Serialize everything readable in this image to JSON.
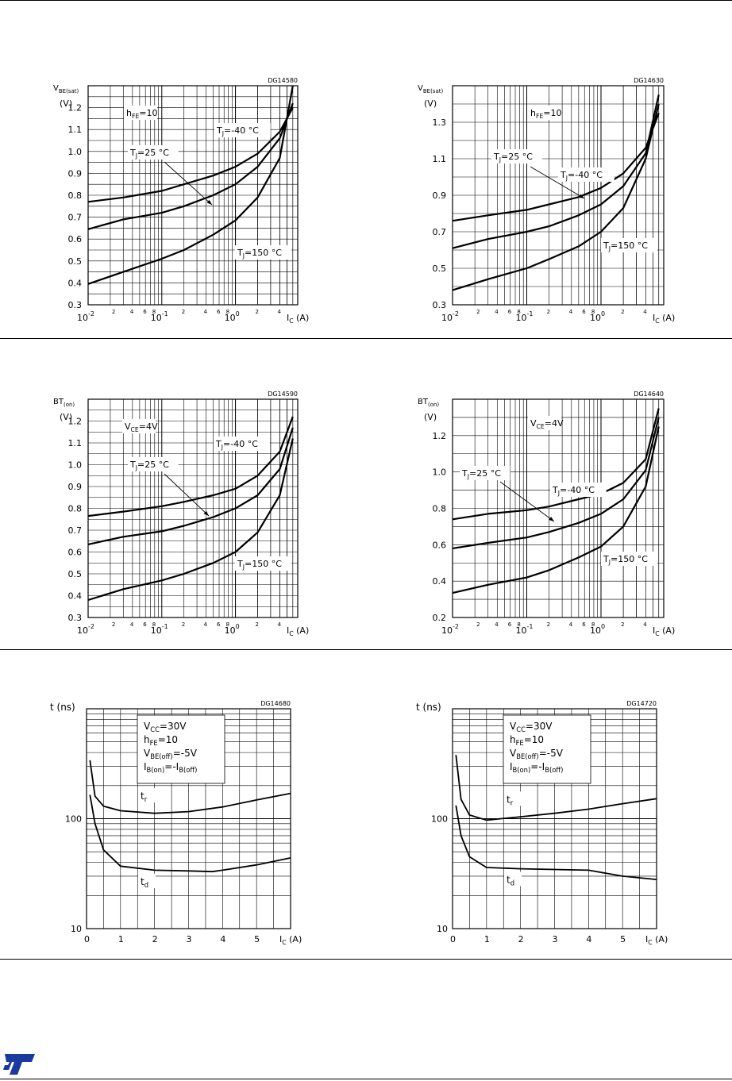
{
  "charts": [
    {
      "kind": "log",
      "code": "DG14580",
      "ylabel": "V",
      "ysub": "BE(sat)",
      "yunit": "(V)",
      "yticks": [
        "0.3",
        "0.4",
        "0.5",
        "0.6",
        "0.7",
        "0.8",
        "0.9",
        "1.0",
        "1.1",
        "1.2"
      ],
      "xticks": {
        "d2": "10",
        "e2": "-2",
        "d1": "10",
        "e1": "-1",
        "d0": "10",
        "e0": "0",
        "minor": [
          "2",
          "4",
          "6",
          "8"
        ]
      },
      "xlabel": "I",
      "xsub": "C",
      "xunit": "(A)",
      "notes": [
        {
          "main": "h",
          "sub": "FE",
          "rest": "=10"
        },
        {
          "main": "T",
          "sub": "J",
          "rest": "=-40 °C"
        },
        {
          "main": "T",
          "sub": "J",
          "rest": "=25 °C"
        },
        {
          "main": "T",
          "sub": "J",
          "rest": "=150 °C"
        }
      ]
    },
    {
      "kind": "log",
      "code": "DG14630",
      "ylabel": "V",
      "ysub": "BE(sat)",
      "yunit": "(V)",
      "yticks": [
        "0.3",
        "0.5",
        "0.7",
        "0.9",
        "1.1",
        "1.3"
      ],
      "xticks": {
        "d2": "10",
        "e2": "-2",
        "d1": "10",
        "e1": "-1",
        "d0": "10",
        "e0": "0",
        "minor": [
          "2",
          "4",
          "6",
          "8"
        ]
      },
      "xlabel": "I",
      "xsub": "C",
      "xunit": "(A)",
      "notes": [
        {
          "main": "h",
          "sub": "FE",
          "rest": "=10"
        },
        {
          "main": "T",
          "sub": "J",
          "rest": "=25 °C"
        },
        {
          "main": "T",
          "sub": "J",
          "rest": "=-40 °C"
        },
        {
          "main": "T",
          "sub": "J",
          "rest": "=150 °C"
        }
      ]
    },
    {
      "kind": "log",
      "code": "DG14590",
      "ylabel": "BT",
      "ysub": "(on)",
      "yunit": "(V)",
      "yticks": [
        "0.3",
        "0.4",
        "0.5",
        "0.6",
        "0.7",
        "0.8",
        "0.9",
        "1.0",
        "1.1",
        "1.2"
      ],
      "xticks": {
        "d2": "10",
        "e2": "-2",
        "d1": "10",
        "e1": "-1",
        "d0": "10",
        "e0": "0",
        "minor": [
          "2",
          "4",
          "6",
          "8"
        ]
      },
      "xlabel": "I",
      "xsub": "C",
      "xunit": "(A)",
      "notes": [
        {
          "main": "V",
          "sub": "CE",
          "rest": "=4V"
        },
        {
          "main": "T",
          "sub": "J",
          "rest": "=-40 °C"
        },
        {
          "main": "T",
          "sub": "J",
          "rest": "=25 °C"
        },
        {
          "main": "T",
          "sub": "J",
          "rest": "=150 °C"
        }
      ]
    },
    {
      "kind": "log",
      "code": "DG14640",
      "ylabel": "BT",
      "ysub": "(on)",
      "yunit": "(V)",
      "yticks": [
        "0.2",
        "0.4",
        "0.6",
        "0.8",
        "1.0",
        "1.2"
      ],
      "xticks": {
        "d2": "10",
        "e2": "-2",
        "d1": "10",
        "e1": "-1",
        "d0": "10",
        "e0": "0",
        "minor": [
          "2",
          "4",
          "6",
          "8"
        ]
      },
      "xlabel": "I",
      "xsub": "C",
      "xunit": "(A)",
      "notes": [
        {
          "main": "V",
          "sub": "CE",
          "rest": "=4V"
        },
        {
          "main": "T",
          "sub": "J",
          "rest": "=25 °C"
        },
        {
          "main": "T",
          "sub": "J",
          "rest": "=-40 °C"
        },
        {
          "main": "T",
          "sub": "J",
          "rest": "=150 °C"
        }
      ]
    },
    {
      "kind": "lin",
      "code": "DG14680",
      "ylabel": "t (ns)",
      "yticks": [
        "10",
        "100"
      ],
      "xticks": [
        "0",
        "1",
        "2",
        "3",
        "4",
        "5"
      ],
      "xlabel": "I",
      "xsub": "C",
      "xunit": "(A)",
      "legend": [
        {
          "main": "V",
          "sub": "CC",
          "rest": "=30V"
        },
        {
          "main": "h",
          "sub": "FE",
          "rest": "=10"
        },
        {
          "main": "V",
          "sub": "BE(off)",
          "rest": "=-5V"
        },
        {
          "main": "I",
          "sub": "B(on)",
          "rest": "=-I",
          "sub2": "B(off)"
        }
      ],
      "curve_labels": [
        {
          "main": "t",
          "sub": "r"
        },
        {
          "main": "t",
          "sub": "d"
        }
      ]
    },
    {
      "kind": "lin",
      "code": "DG14720",
      "ylabel": "t (ns)",
      "yticks": [
        "10",
        "100"
      ],
      "xticks": [
        "0",
        "1",
        "2",
        "3",
        "4",
        "5"
      ],
      "xlabel": "I",
      "xsub": "C",
      "xunit": "(A)",
      "legend": [
        {
          "main": "V",
          "sub": "CC",
          "rest": "=30V"
        },
        {
          "main": "h",
          "sub": "FE",
          "rest": "=10"
        },
        {
          "main": "V",
          "sub": "BE(off)",
          "rest": "=-5V"
        },
        {
          "main": "I",
          "sub": "B(on)",
          "rest": "=-I",
          "sub2": "B(off)"
        }
      ],
      "curve_labels": [
        {
          "main": "t",
          "sub": "r"
        },
        {
          "main": "t",
          "sub": "d"
        }
      ]
    }
  ],
  "chart_data": [
    {
      "type": "line",
      "x_scale": "log",
      "xlim": [
        0.01,
        7
      ],
      "ylim": [
        0.3,
        1.3
      ],
      "series": [
        {
          "name": "TJ=-40°C",
          "x": [
            0.01,
            0.03,
            0.1,
            0.2,
            0.5,
            1,
            2,
            4,
            6
          ],
          "y": [
            0.77,
            0.79,
            0.82,
            0.85,
            0.89,
            0.93,
            0.99,
            1.09,
            1.2
          ]
        },
        {
          "name": "TJ=25°C",
          "x": [
            0.01,
            0.03,
            0.1,
            0.2,
            0.5,
            1,
            2,
            4,
            6
          ],
          "y": [
            0.645,
            0.69,
            0.72,
            0.75,
            0.8,
            0.85,
            0.93,
            1.06,
            1.22
          ]
        },
        {
          "name": "TJ=150°C",
          "x": [
            0.01,
            0.03,
            0.1,
            0.2,
            0.5,
            1,
            2,
            4,
            6
          ],
          "y": [
            0.395,
            0.45,
            0.51,
            0.55,
            0.62,
            0.685,
            0.79,
            0.97,
            1.3
          ]
        }
      ]
    },
    {
      "type": "line",
      "x_scale": "log",
      "xlim": [
        0.01,
        7
      ],
      "ylim": [
        0.3,
        1.5
      ],
      "series": [
        {
          "name": "TJ=-40°C",
          "x": [
            0.01,
            0.03,
            0.1,
            0.2,
            0.5,
            1,
            2,
            4,
            6
          ],
          "y": [
            0.76,
            0.79,
            0.82,
            0.85,
            0.89,
            0.94,
            1.02,
            1.16,
            1.35
          ]
        },
        {
          "name": "TJ=25°C",
          "x": [
            0.01,
            0.03,
            0.1,
            0.2,
            0.5,
            1,
            2,
            4,
            6
          ],
          "y": [
            0.61,
            0.66,
            0.7,
            0.73,
            0.79,
            0.85,
            0.95,
            1.13,
            1.45
          ]
        },
        {
          "name": "TJ=150°C",
          "x": [
            0.01,
            0.03,
            0.1,
            0.2,
            0.5,
            1,
            2,
            4,
            6
          ],
          "y": [
            0.38,
            0.44,
            0.5,
            0.55,
            0.62,
            0.7,
            0.83,
            1.1,
            1.4
          ]
        }
      ]
    },
    {
      "type": "line",
      "x_scale": "log",
      "xlim": [
        0.01,
        7
      ],
      "ylim": [
        0.3,
        1.3
      ],
      "series": [
        {
          "name": "TJ=-40°C",
          "x": [
            0.01,
            0.03,
            0.1,
            0.2,
            0.5,
            1,
            2,
            4,
            6
          ],
          "y": [
            0.765,
            0.785,
            0.81,
            0.83,
            0.86,
            0.89,
            0.95,
            1.06,
            1.22
          ]
        },
        {
          "name": "TJ=25°C",
          "x": [
            0.01,
            0.03,
            0.1,
            0.2,
            0.5,
            1,
            2,
            4,
            6
          ],
          "y": [
            0.635,
            0.67,
            0.695,
            0.72,
            0.76,
            0.8,
            0.86,
            0.98,
            1.17
          ]
        },
        {
          "name": "TJ=150°C",
          "x": [
            0.01,
            0.03,
            0.1,
            0.2,
            0.5,
            1,
            2,
            4,
            6
          ],
          "y": [
            0.38,
            0.43,
            0.47,
            0.5,
            0.55,
            0.6,
            0.69,
            0.86,
            1.12
          ]
        }
      ]
    },
    {
      "type": "line",
      "x_scale": "log",
      "xlim": [
        0.01,
        7
      ],
      "ylim": [
        0.2,
        1.4
      ],
      "series": [
        {
          "name": "TJ=-40°C",
          "x": [
            0.01,
            0.03,
            0.1,
            0.2,
            0.5,
            1,
            2,
            4,
            6
          ],
          "y": [
            0.74,
            0.77,
            0.79,
            0.81,
            0.85,
            0.88,
            0.94,
            1.07,
            1.35
          ]
        },
        {
          "name": "TJ=25°C",
          "x": [
            0.01,
            0.03,
            0.1,
            0.2,
            0.5,
            1,
            2,
            4,
            6
          ],
          "y": [
            0.58,
            0.61,
            0.64,
            0.67,
            0.72,
            0.77,
            0.85,
            1.01,
            1.3
          ]
        },
        {
          "name": "TJ=150°C",
          "x": [
            0.01,
            0.03,
            0.1,
            0.2,
            0.5,
            1,
            2,
            4,
            6
          ],
          "y": [
            0.335,
            0.38,
            0.42,
            0.46,
            0.53,
            0.59,
            0.7,
            0.92,
            1.25
          ]
        }
      ]
    },
    {
      "type": "line",
      "y_scale": "log",
      "xlim": [
        0,
        6
      ],
      "ylim": [
        10,
        1000
      ],
      "series": [
        {
          "name": "tr",
          "x": [
            0.1,
            0.25,
            0.5,
            1,
            2,
            3,
            4,
            5,
            6
          ],
          "y": [
            340,
            160,
            130,
            118,
            112,
            116,
            128,
            148,
            170
          ]
        },
        {
          "name": "td",
          "x": [
            0.1,
            0.25,
            0.5,
            1,
            2,
            3,
            3.7,
            4,
            5,
            6
          ],
          "y": [
            165,
            90,
            52,
            37,
            34,
            33.5,
            33,
            34,
            38,
            44
          ]
        }
      ]
    },
    {
      "type": "line",
      "y_scale": "log",
      "xlim": [
        0,
        6
      ],
      "ylim": [
        10,
        1000
      ],
      "series": [
        {
          "name": "tr",
          "x": [
            0.1,
            0.25,
            0.5,
            1,
            2,
            3,
            4,
            5,
            6
          ],
          "y": [
            380,
            150,
            108,
            97,
            104,
            112,
            122,
            137,
            152
          ]
        },
        {
          "name": "td",
          "x": [
            0.1,
            0.25,
            0.5,
            1,
            2,
            3,
            4,
            5,
            6
          ],
          "y": [
            132,
            70,
            45,
            36,
            35,
            34.5,
            34,
            30,
            28
          ]
        }
      ]
    }
  ]
}
